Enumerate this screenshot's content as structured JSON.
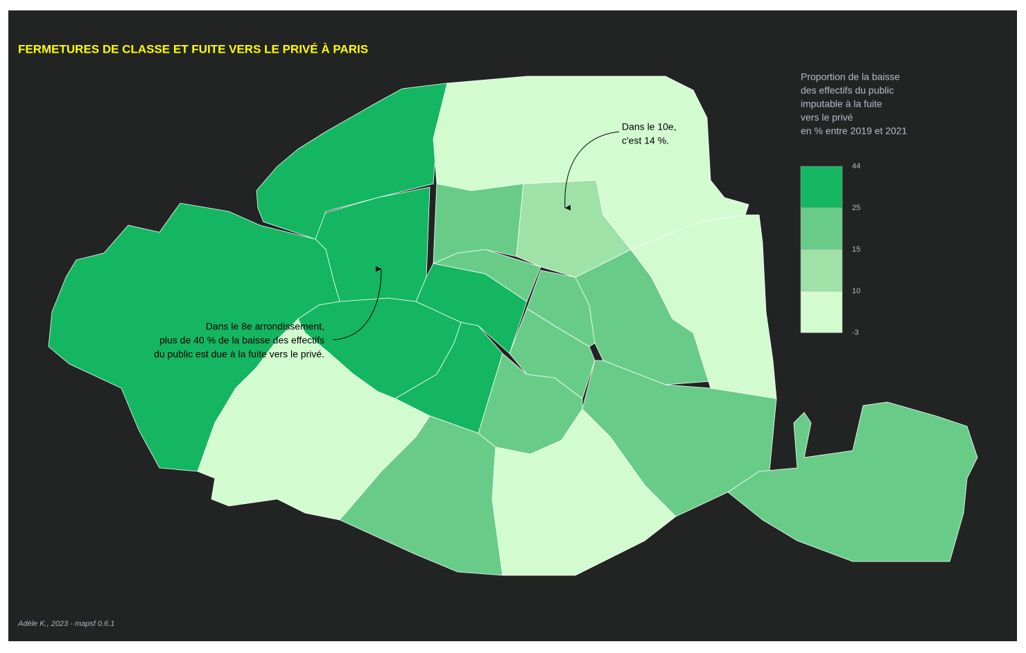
{
  "title": "FERMETURES DE CLASSE ET FUITE VERS LE PRIVÉ À PARIS",
  "legend": {
    "title_lines": [
      "Proportion de la baisse",
      "des effectifs du public",
      "imputable à la fuite",
      "vers le privé",
      "en % entre 2019 et 2021"
    ],
    "breaks": [
      44,
      25,
      15,
      10,
      -3
    ],
    "colors": [
      "#14b661",
      "#68cc88",
      "#9ee2a8",
      "#d2fcd0"
    ]
  },
  "map": {
    "region_colors": [
      "#14b661",
      "#14b661",
      "#14b661",
      "#14b661",
      "#14b661",
      "#14b661",
      "#d2fcd0",
      "#68cc88",
      "#d2fcd0",
      "#68cc88",
      "#68cc88",
      "#68cc88",
      "#68cc88",
      "#68cc88",
      "#d2fcd0",
      "#9ee2a8",
      "#68cc88",
      "#d2fcd0",
      "#68cc88",
      "#68cc88"
    ]
  },
  "annotations": [
    {
      "lines": [
        "Dans le 8e arrondissement,",
        "plus de 40 % de la baisse des effectifs",
        "du public est due à la fuite vers le privé."
      ]
    },
    {
      "lines": [
        "Dans le 10e,",
        "c'est 14 %."
      ]
    }
  ],
  "credit": "Adèle K., 2023 - mapsf 0.6.1"
}
